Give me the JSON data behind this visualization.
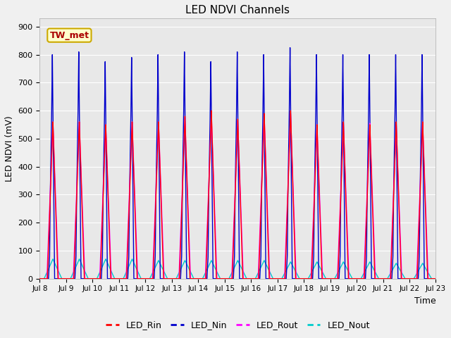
{
  "title": "LED NDVI Channels",
  "xlabel": "Time",
  "ylabel": "LED NDVI (mV)",
  "ylim": [
    0,
    930
  ],
  "yticks": [
    0,
    100,
    200,
    300,
    400,
    500,
    600,
    700,
    800,
    900
  ],
  "background_color": "#f0f0f0",
  "plot_bg_color": "#e8e8e8",
  "colors": {
    "LED_Rin": "#ff0000",
    "LED_Nin": "#0000cc",
    "LED_Rout": "#ff00ff",
    "LED_Nout": "#00cccc"
  },
  "annotation_text": "TW_met",
  "annotation_color": "#aa0000",
  "annotation_bg": "#ffffcc",
  "annotation_border": "#ccaa00",
  "grid_color": "#ffffff",
  "tick_labels": [
    "Jul 8",
    "Jul 9",
    "Jul 10",
    "Jul 11",
    "Jul 12",
    "Jul 13",
    "Jul 14",
    "Jul 15",
    "Jul 16",
    "Jul 17",
    "Jul 18",
    "Jul 19",
    "Jul 20",
    "Jul 21",
    "Jul 22",
    "Jul 23"
  ],
  "linewidth": 1.0,
  "figsize": [
    6.4,
    4.8
  ],
  "dpi": 100
}
